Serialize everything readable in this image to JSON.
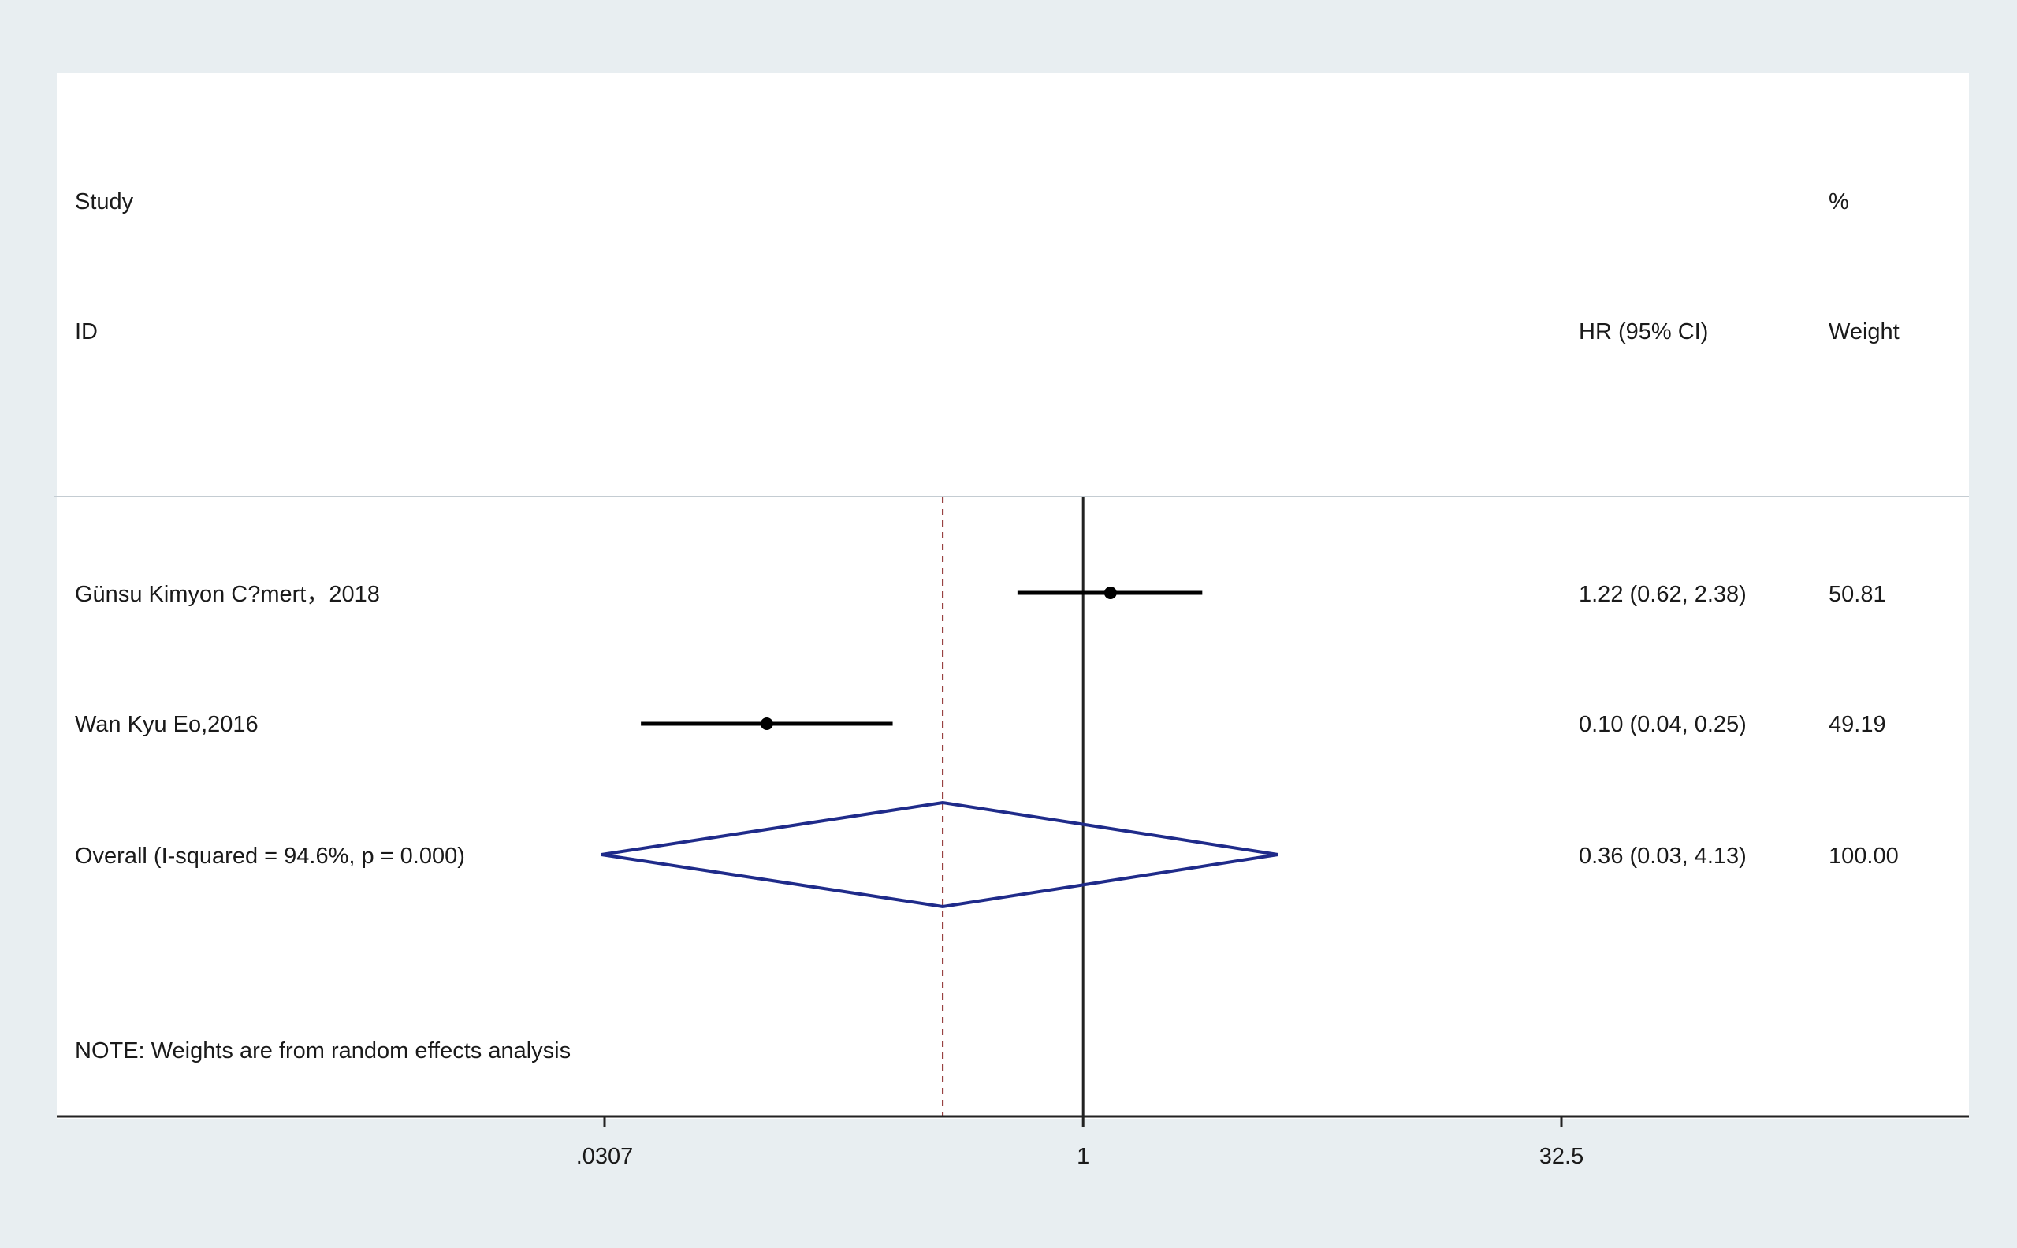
{
  "chart_data": {
    "type": "forest",
    "scale": "log",
    "headers": {
      "study_line1": "Study",
      "study_line2": "ID",
      "effect": "HR (95% CI)",
      "weight_line1": "%",
      "weight_line2": "Weight"
    },
    "studies": [
      {
        "label": "Günsu Kimyon C?mert，2018",
        "hr": 1.22,
        "lower": 0.62,
        "upper": 2.38,
        "ci_text": "1.22 (0.62, 2.38)",
        "weight_text": "50.81"
      },
      {
        "label": "Wan Kyu Eo,2016",
        "hr": 0.1,
        "lower": 0.04,
        "upper": 0.25,
        "ci_text": "0.10 (0.04, 0.25)",
        "weight_text": "49.19"
      }
    ],
    "overall": {
      "label": "Overall  (I-squared = 94.6%, p = 0.000)",
      "hr": 0.36,
      "lower": 0.03,
      "upper": 4.13,
      "ci_text": "0.36 (0.03, 4.13)",
      "weight_text": "100.00"
    },
    "note": "NOTE: Weights are from random effects analysis",
    "x_ticks": [
      {
        "value": 0.0307,
        "label": ".0307"
      },
      {
        "value": 1,
        "label": "1"
      },
      {
        "value": 32.5,
        "label": "32.5"
      }
    ],
    "null_line": 1,
    "colors": {
      "diamond": "#1f2b8a",
      "dashed": "#8b2a2a",
      "axis": "#222222"
    }
  }
}
